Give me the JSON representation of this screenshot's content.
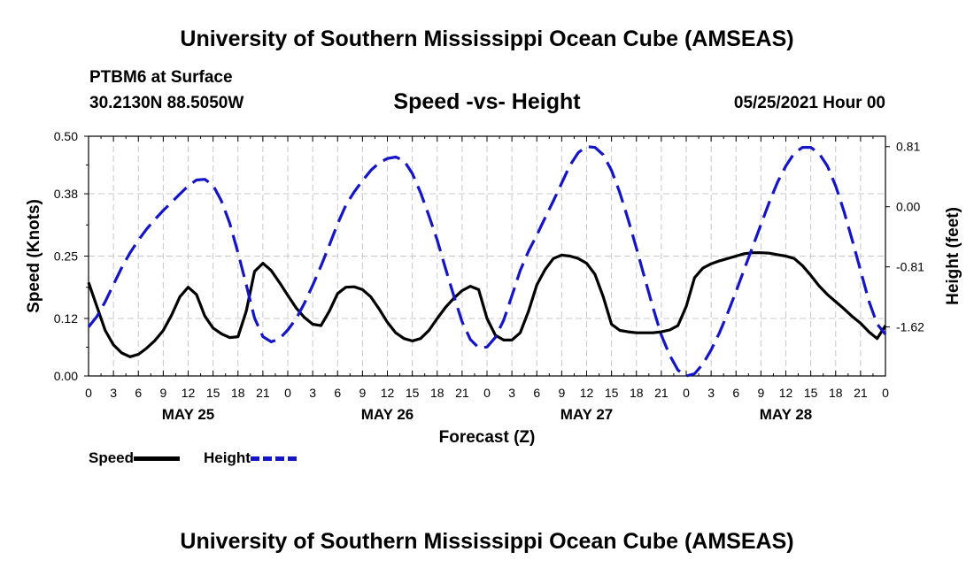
{
  "header": {
    "title_top": "University of Southern Mississippi Ocean Cube (AMSEAS)",
    "title_bottom": "University of Southern Mississippi Ocean Cube (AMSEAS)",
    "station": "PTBM6 at Surface",
    "coords": "30.2130N  88.5050W",
    "subtitle": "Speed -vs- Height",
    "datetime": "05/25/2021 Hour 00"
  },
  "legend": {
    "speed": "Speed",
    "height": "Height"
  },
  "colors": {
    "speed": "#000000",
    "height": "#1414c8",
    "grid": "#c8c8c8"
  },
  "chart_data": {
    "type": "line",
    "title": "Speed -vs- Height",
    "xlabel": "Forecast (Z)",
    "ylabel": "Speed (Knots)",
    "y2label": "Height (feet)",
    "xlim": [
      0,
      96
    ],
    "ylim": [
      0,
      0.5
    ],
    "y2lim": [
      -2.28,
      0.95
    ],
    "x_ticks": [
      0,
      3,
      6,
      9,
      12,
      15,
      18,
      21,
      24,
      27,
      30,
      33,
      36,
      39,
      42,
      45,
      48,
      51,
      54,
      57,
      60,
      63,
      66,
      69,
      72,
      75,
      78,
      81,
      84,
      87,
      90,
      93,
      96
    ],
    "x_tick_labels": [
      "0",
      "3",
      "6",
      "9",
      "12",
      "15",
      "18",
      "21",
      "0",
      "3",
      "6",
      "9",
      "12",
      "15",
      "18",
      "21",
      "0",
      "3",
      "6",
      "9",
      "12",
      "15",
      "18",
      "21",
      "0",
      "3",
      "6",
      "9",
      "12",
      "15",
      "18",
      "21",
      "0"
    ],
    "day_labels": [
      {
        "label": "MAY 25",
        "x": 12
      },
      {
        "label": "MAY 26",
        "x": 36
      },
      {
        "label": "MAY 27",
        "x": 60
      },
      {
        "label": "MAY 28",
        "x": 84
      }
    ],
    "y_ticks": [
      0.0,
      0.12,
      0.25,
      0.38,
      0.5
    ],
    "y_tick_labels": [
      "0.00",
      "0.12",
      "0.25",
      "0.38",
      "0.50"
    ],
    "y2_ticks": [
      -1.62,
      -0.81,
      0.0,
      0.81
    ],
    "y2_tick_labels": [
      "-1.62",
      "-0.81",
      "0.00",
      "0.81"
    ],
    "series": [
      {
        "name": "Speed",
        "axis": "left",
        "style": "solid",
        "x": [
          0,
          1,
          2,
          3,
          4,
          5,
          6,
          7,
          8,
          9,
          10,
          11,
          12,
          13,
          14,
          15,
          16,
          17,
          18,
          19,
          20,
          21,
          22,
          23,
          24,
          25,
          26,
          27,
          28,
          29,
          30,
          31,
          32,
          33,
          34,
          35,
          36,
          37,
          38,
          39,
          40,
          41,
          42,
          43,
          44,
          45,
          46,
          47,
          48,
          49,
          50,
          51,
          52,
          53,
          54,
          55,
          56,
          57,
          58,
          59,
          60,
          61,
          62,
          63,
          64,
          65,
          66,
          67,
          68,
          69,
          70,
          71,
          72,
          73,
          74,
          75,
          76,
          77,
          78,
          79,
          80,
          81,
          82,
          83,
          84,
          85,
          86,
          87,
          88,
          89,
          90,
          91,
          92,
          93,
          94,
          95,
          96
        ],
        "values": [
          0.195,
          0.145,
          0.095,
          0.065,
          0.048,
          0.04,
          0.045,
          0.058,
          0.074,
          0.095,
          0.127,
          0.165,
          0.185,
          0.17,
          0.125,
          0.1,
          0.088,
          0.08,
          0.082,
          0.135,
          0.218,
          0.235,
          0.22,
          0.195,
          0.168,
          0.142,
          0.122,
          0.108,
          0.105,
          0.135,
          0.172,
          0.185,
          0.186,
          0.18,
          0.165,
          0.14,
          0.112,
          0.09,
          0.078,
          0.073,
          0.078,
          0.095,
          0.12,
          0.143,
          0.162,
          0.178,
          0.187,
          0.18,
          0.12,
          0.085,
          0.075,
          0.075,
          0.09,
          0.135,
          0.19,
          0.222,
          0.245,
          0.252,
          0.25,
          0.245,
          0.235,
          0.212,
          0.165,
          0.108,
          0.095,
          0.092,
          0.09,
          0.09,
          0.09,
          0.092,
          0.096,
          0.105,
          0.145,
          0.205,
          0.225,
          0.234,
          0.24,
          0.245,
          0.25,
          0.255,
          0.257,
          0.257,
          0.256,
          0.253,
          0.25,
          0.245,
          0.23,
          0.21,
          0.188,
          0.17,
          0.155,
          0.14,
          0.124,
          0.11,
          0.092,
          0.078,
          0.105
        ]
      },
      {
        "name": "Height",
        "axis": "right",
        "style": "dashed",
        "x": [
          0,
          1,
          2,
          3,
          4,
          5,
          6,
          7,
          8,
          9,
          10,
          11,
          12,
          13,
          14,
          15,
          16,
          17,
          18,
          19,
          20,
          21,
          22,
          23,
          24,
          25,
          26,
          27,
          28,
          29,
          30,
          31,
          32,
          33,
          34,
          35,
          36,
          37,
          38,
          39,
          40,
          41,
          42,
          43,
          44,
          45,
          46,
          47,
          48,
          49,
          50,
          51,
          52,
          53,
          54,
          55,
          56,
          57,
          58,
          59,
          60,
          61,
          62,
          63,
          64,
          65,
          66,
          67,
          68,
          69,
          70,
          71,
          72,
          73,
          74,
          75,
          76,
          77,
          78,
          79,
          80,
          81,
          82,
          83,
          84,
          85,
          86,
          87,
          88,
          89,
          90,
          91,
          92,
          93,
          94,
          95,
          96
        ],
        "values": [
          -1.62,
          -1.48,
          -1.28,
          -1.05,
          -0.82,
          -0.62,
          -0.45,
          -0.3,
          -0.17,
          -0.05,
          0.06,
          0.17,
          0.28,
          0.36,
          0.37,
          0.29,
          0.08,
          -0.22,
          -0.62,
          -1.05,
          -1.5,
          -1.75,
          -1.82,
          -1.78,
          -1.66,
          -1.51,
          -1.3,
          -1.06,
          -0.8,
          -0.52,
          -0.23,
          0.02,
          0.2,
          0.35,
          0.49,
          0.59,
          0.65,
          0.67,
          0.62,
          0.45,
          0.19,
          -0.12,
          -0.45,
          -0.83,
          -1.2,
          -1.55,
          -1.79,
          -1.9,
          -1.89,
          -1.76,
          -1.53,
          -1.2,
          -0.86,
          -0.6,
          -0.38,
          -0.15,
          0.08,
          0.32,
          0.56,
          0.73,
          0.81,
          0.8,
          0.7,
          0.49,
          0.19,
          -0.17,
          -0.56,
          -0.96,
          -1.36,
          -1.73,
          -2.0,
          -2.2,
          -2.28,
          -2.25,
          -2.12,
          -1.93,
          -1.7,
          -1.43,
          -1.14,
          -0.84,
          -0.54,
          -0.24,
          0.06,
          0.33,
          0.55,
          0.72,
          0.8,
          0.8,
          0.72,
          0.55,
          0.28,
          -0.06,
          -0.45,
          -0.86,
          -1.27,
          -1.58,
          -1.72
        ]
      }
    ]
  }
}
